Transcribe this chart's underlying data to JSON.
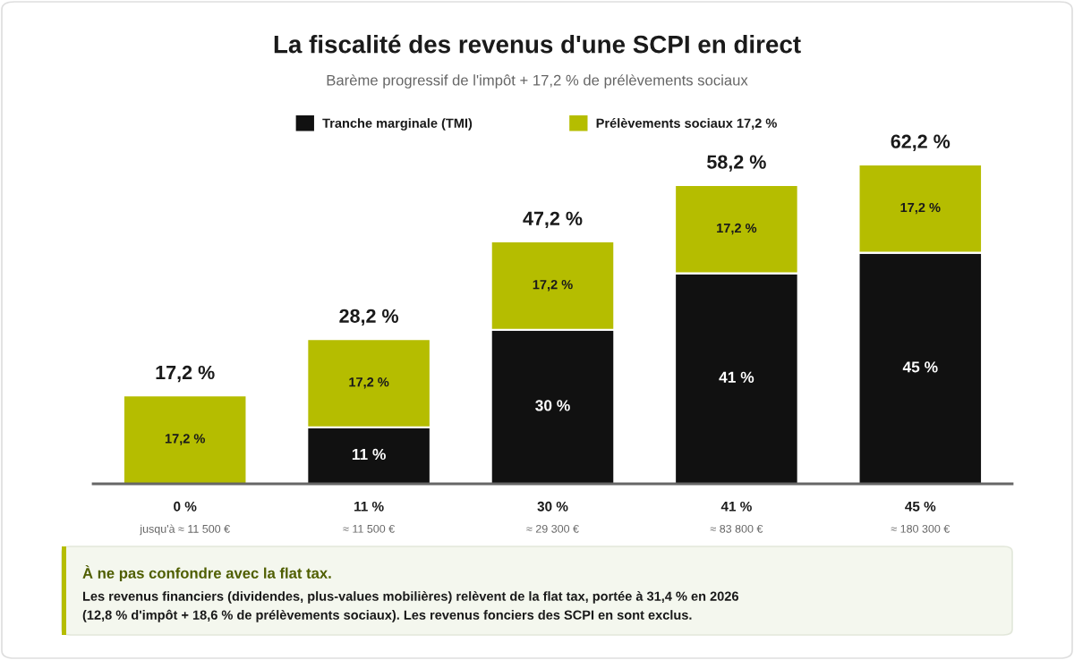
{
  "chart_data": {
    "type": "bar",
    "title": "La fiscalité des revenus d'une SCPI en direct",
    "subtitle": "Barème progressif de l'impôt + 17,2 % de prélèvements sociaux",
    "categories": [
      "0 %\njusqu'à ≈ 11 500 €",
      "11 %\n≈ 11 500 €",
      "30 %\n≈ 29 300 €",
      "41 %\n≈ 83 800 €",
      "45 %\n≈ 180 300 €"
    ],
    "stacked": true,
    "series": [
      {
        "name": "Tranche marginale (TMI)",
        "color": "#111111",
        "values": [
          0,
          11,
          30,
          41,
          45
        ],
        "value_labels": [
          null,
          "11 %",
          "30 %",
          "41 %",
          "45 %"
        ]
      },
      {
        "name": "Prélèvements sociaux 17,2 %",
        "color": "#b5bd00",
        "values": [
          17.2,
          17.2,
          17.2,
          17.2,
          17.2
        ],
        "value_labels": [
          "17,2 %",
          "17,2 %",
          "17,2 %",
          "17,2 %",
          "17,2 %"
        ]
      }
    ],
    "totals": [
      "17,2 %",
      "28,2 %",
      "47,2 %",
      "58,2 %",
      "62,2 %"
    ],
    "legend": "top",
    "annotations": [
      "À ne pas confondre avec la flat tax.",
      "Les revenus financiers (dividendes, plus-values mobilières) relèvent de la flat tax, portée à 31,4 % en 2026\n(12,8 % d'impôt + 18,6 % de prélèvements sociaux). Les revenus fonciers des SCPI en sont exclus."
    ]
  }
}
